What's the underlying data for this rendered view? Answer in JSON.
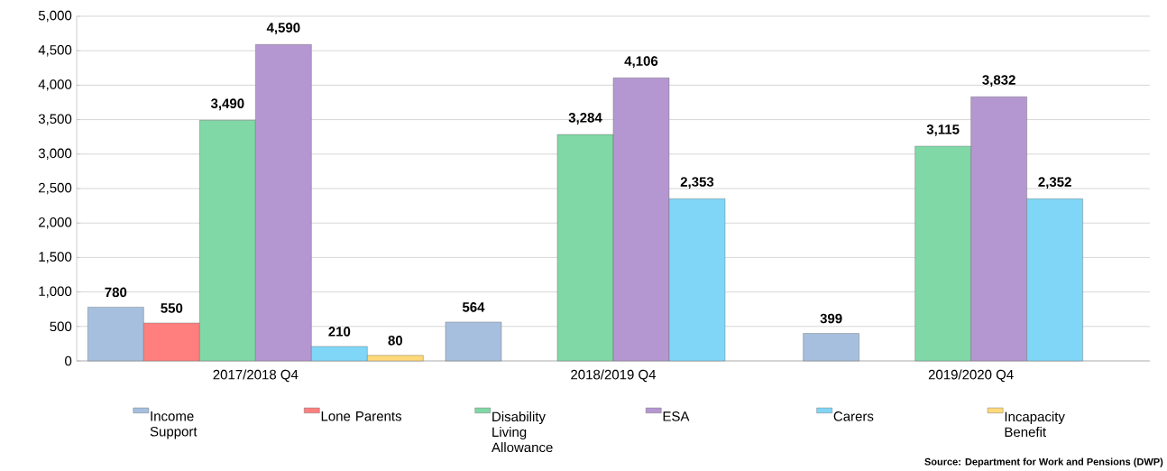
{
  "chart_data": {
    "type": "bar",
    "categories": [
      "2017/2018 Q4",
      "2018/2019 Q4",
      "2019/2020 Q4"
    ],
    "series": [
      {
        "name": "Income Support",
        "color": "#a6bfdf",
        "values": [
          780,
          564,
          399
        ],
        "value_labels": [
          "780",
          "564",
          "399"
        ]
      },
      {
        "name": "Lone Parents",
        "color": "#ff7f7f",
        "values": [
          550,
          null,
          null
        ],
        "value_labels": [
          "550",
          null,
          null
        ]
      },
      {
        "name": "Disability Living Allowance",
        "color": "#80d8a6",
        "values": [
          3490,
          3284,
          3115
        ],
        "value_labels": [
          "3,490",
          "3,284",
          "3,115"
        ]
      },
      {
        "name": "ESA",
        "color": "#b497d0",
        "values": [
          4590,
          4106,
          3832
        ],
        "value_labels": [
          "4,590",
          "4,106",
          "3,832"
        ]
      },
      {
        "name": "Carers",
        "color": "#80d6f7",
        "values": [
          210,
          2353,
          2352
        ],
        "value_labels": [
          "210",
          "2,353",
          "2,352"
        ]
      },
      {
        "name": "Incapacity Benefit",
        "color": "#ffd97a",
        "values": [
          80,
          null,
          null
        ],
        "value_labels": [
          "80",
          null,
          null
        ]
      }
    ],
    "ylim": [
      0,
      5000
    ],
    "yticks": [
      {
        "value": 0,
        "label": "0"
      },
      {
        "value": 500,
        "label": "500"
      },
      {
        "value": 1000,
        "label": "1,000"
      },
      {
        "value": 1500,
        "label": "1,500"
      },
      {
        "value": 2000,
        "label": "2,000"
      },
      {
        "value": 2500,
        "label": "2,500"
      },
      {
        "value": 3000,
        "label": "3,000"
      },
      {
        "value": 3500,
        "label": "3,500"
      },
      {
        "value": 4000,
        "label": "4,000"
      },
      {
        "value": 4500,
        "label": "4,500"
      },
      {
        "value": 5000,
        "label": "5,000"
      }
    ],
    "grid": "y",
    "legend": "bottom",
    "annotations": [
      "Source: Department for Work and Pensions (DWP)"
    ]
  }
}
